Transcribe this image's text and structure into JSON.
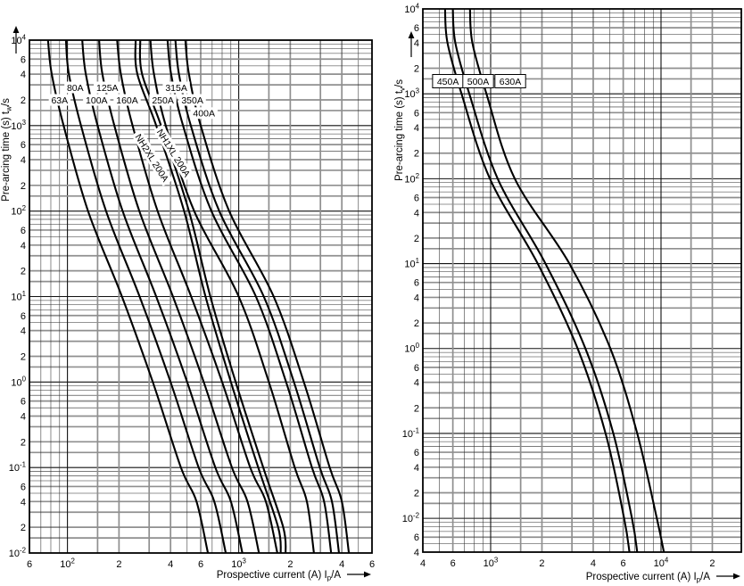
{
  "page": {
    "background": "#ffffff"
  },
  "styles": {
    "curve": "#000000",
    "grid_minor": "#2b2b2b",
    "grid_emph": "#8f8f8f",
    "grid_major": "#111111",
    "frame": "#000000",
    "label_halo": "#ffffff",
    "text": "#000000"
  },
  "chart_data": [
    {
      "name": "left-chart",
      "type": "line",
      "x_axis": {
        "title_pre": "Prospective current (A) I",
        "title_sub": "p",
        "title_post": "/A",
        "scale": "log",
        "range": [
          60,
          6000
        ],
        "ticks": [
          {
            "v": 60,
            "t": "6"
          },
          {
            "v": 100,
            "t": "10^2"
          },
          {
            "v": 200,
            "t": "2"
          },
          {
            "v": 400,
            "t": "4"
          },
          {
            "v": 600,
            "t": "6"
          },
          {
            "v": 1000,
            "t": "10^3"
          },
          {
            "v": 2000,
            "t": "2"
          },
          {
            "v": 4000,
            "t": "4"
          },
          {
            "v": 6000,
            "t": "6"
          }
        ]
      },
      "y_axis": {
        "title_pre": "Pre-arcing time (s) t",
        "title_sub": "w",
        "title_post": "/s",
        "scale": "log",
        "range": [
          0.01,
          10000
        ],
        "ticks": [
          {
            "v": 10000,
            "t": "10^4"
          },
          {
            "v": 6000,
            "t": "6"
          },
          {
            "v": 4000,
            "t": "4"
          },
          {
            "v": 2000,
            "t": "2"
          },
          {
            "v": 1000,
            "t": "10^3"
          },
          {
            "v": 600,
            "t": "6"
          },
          {
            "v": 400,
            "t": "4"
          },
          {
            "v": 200,
            "t": "2"
          },
          {
            "v": 100,
            "t": "10^2"
          },
          {
            "v": 60,
            "t": "6"
          },
          {
            "v": 40,
            "t": "4"
          },
          {
            "v": 20,
            "t": "2"
          },
          {
            "v": 10,
            "t": "10^1"
          },
          {
            "v": 6,
            "t": "6"
          },
          {
            "v": 4,
            "t": "4"
          },
          {
            "v": 2,
            "t": "2"
          },
          {
            "v": 1,
            "t": "10^0"
          },
          {
            "v": 0.6,
            "t": "6"
          },
          {
            "v": 0.4,
            "t": "4"
          },
          {
            "v": 0.2,
            "t": "2"
          },
          {
            "v": 0.1,
            "t": "10^-1"
          },
          {
            "v": 0.06,
            "t": "6"
          },
          {
            "v": 0.04,
            "t": "4"
          },
          {
            "v": 0.02,
            "t": "2"
          },
          {
            "v": 0.01,
            "t": "10^-2"
          }
        ]
      },
      "series": [
        {
          "label": "63A",
          "boxed": false,
          "label_rotation": 0,
          "label_at": [
            90,
            2000
          ],
          "points": [
            [
              77,
              10000
            ],
            [
              81,
              4000
            ],
            [
              95,
              1000
            ],
            [
              132,
              100
            ],
            [
              208,
              10
            ],
            [
              315,
              1
            ],
            [
              460,
              0.1
            ],
            [
              567,
              0.04
            ],
            [
              661,
              0.01
            ]
          ]
        },
        {
          "label": "80A",
          "boxed": false,
          "label_rotation": 0,
          "label_at": [
            111,
            2800
          ],
          "points": [
            [
              98,
              10000
            ],
            [
              102,
              4000
            ],
            [
              120,
              1000
            ],
            [
              168,
              100
            ],
            [
              264,
              10
            ],
            [
              400,
              1
            ],
            [
              584,
              0.1
            ],
            [
              720,
              0.04
            ],
            [
              840,
              0.01
            ]
          ]
        },
        {
          "label": "100A",
          "boxed": false,
          "label_rotation": 0,
          "label_at": [
            148,
            2000
          ],
          "points": [
            [
              122,
              10000
            ],
            [
              128,
              4000
            ],
            [
              150,
              1000
            ],
            [
              210,
              100
            ],
            [
              330,
              10
            ],
            [
              500,
              1
            ],
            [
              730,
              0.1
            ],
            [
              900,
              0.04
            ],
            [
              1050,
              0.01
            ]
          ]
        },
        {
          "label": "125A",
          "boxed": false,
          "label_rotation": 0,
          "label_at": [
            171,
            2800
          ],
          "points": [
            [
              153,
              10000
            ],
            [
              160,
              4000
            ],
            [
              188,
              1000
            ],
            [
              263,
              100
            ],
            [
              413,
              10
            ],
            [
              625,
              1
            ],
            [
              913,
              0.1
            ],
            [
              1125,
              0.04
            ],
            [
              1313,
              0.01
            ]
          ]
        },
        {
          "label": "160A",
          "boxed": false,
          "label_rotation": 0,
          "label_at": [
            223,
            2000
          ],
          "points": [
            [
              195,
              10000
            ],
            [
              205,
              4000
            ],
            [
              240,
              1000
            ],
            [
              336,
              100
            ],
            [
              528,
              10
            ],
            [
              800,
              1
            ],
            [
              1168,
              0.1
            ],
            [
              1440,
              0.04
            ],
            [
              1680,
              0.01
            ]
          ]
        },
        {
          "label": "NH2XL 200A",
          "boxed": false,
          "label_rotation": 58,
          "label_at": [
            312,
            420
          ],
          "points": [
            [
              250,
              10000
            ],
            [
              256,
              4000
            ],
            [
              330,
              1000
            ],
            [
              480,
              100
            ],
            [
              640,
              10
            ],
            [
              900,
              1
            ],
            [
              1300,
              0.1
            ],
            [
              1700,
              0.02
            ],
            [
              1760,
              0.01
            ]
          ]
        },
        {
          "label": "NH1XL 200A",
          "boxed": false,
          "label_rotation": 58,
          "label_at": [
            417,
            480
          ],
          "points": [
            [
              266,
              10000
            ],
            [
              273,
              4000
            ],
            [
              352,
              1000
            ],
            [
              512,
              100
            ],
            [
              683,
              10
            ],
            [
              960,
              1
            ],
            [
              1390,
              0.1
            ],
            [
              1820,
              0.02
            ],
            [
              1880,
              0.01
            ]
          ]
        },
        {
          "label": "250A",
          "boxed": false,
          "label_rotation": 0,
          "label_at": [
            361,
            2000
          ],
          "points": [
            [
              305,
              10000
            ],
            [
              320,
              4000
            ],
            [
              375,
              1000
            ],
            [
              550,
              100
            ],
            [
              1000,
              10
            ],
            [
              1500,
              1
            ],
            [
              2125,
              0.1
            ],
            [
              2500,
              0.04
            ],
            [
              2750,
              0.01
            ]
          ]
        },
        {
          "label": "315A",
          "boxed": false,
          "label_rotation": 0,
          "label_at": [
            432,
            2800
          ],
          "points": [
            [
              384,
              10000
            ],
            [
              403,
              4000
            ],
            [
              473,
              1000
            ],
            [
              693,
              100
            ],
            [
              1260,
              10
            ],
            [
              1890,
              1
            ],
            [
              2678,
              0.1
            ],
            [
              3150,
              0.04
            ],
            [
              3465,
              0.01
            ]
          ]
        },
        {
          "label": "350A",
          "boxed": false,
          "label_rotation": 0,
          "label_at": [
            536,
            2000
          ],
          "points": [
            [
              427,
              10000
            ],
            [
              448,
              4000
            ],
            [
              525,
              1000
            ],
            [
              770,
              100
            ],
            [
              1400,
              10
            ],
            [
              2100,
              1
            ],
            [
              2975,
              0.1
            ],
            [
              3500,
              0.04
            ],
            [
              3850,
              0.01
            ]
          ]
        },
        {
          "label": "400A",
          "boxed": false,
          "label_rotation": 0,
          "label_at": [
            627,
            1400
          ],
          "points": [
            [
              488,
              10000
            ],
            [
              512,
              4000
            ],
            [
              600,
              1000
            ],
            [
              880,
              100
            ],
            [
              1600,
              10
            ],
            [
              2400,
              1
            ],
            [
              3400,
              0.1
            ],
            [
              4000,
              0.04
            ],
            [
              4400,
              0.01
            ]
          ]
        }
      ]
    },
    {
      "name": "right-chart",
      "type": "line",
      "x_axis": {
        "title_pre": "Prospective current (A) I",
        "title_sub": "p",
        "title_post": "/A",
        "scale": "log",
        "range": [
          400,
          29600
        ],
        "ticks": [
          {
            "v": 400,
            "t": "4"
          },
          {
            "v": 600,
            "t": "6"
          },
          {
            "v": 1000,
            "t": "10^3"
          },
          {
            "v": 2000,
            "t": "2"
          },
          {
            "v": 4000,
            "t": "4"
          },
          {
            "v": 6000,
            "t": "6"
          },
          {
            "v": 10000,
            "t": "10^4"
          },
          {
            "v": 20000,
            "t": "2"
          }
        ]
      },
      "y_axis": {
        "title_pre": "Pre-arcing time (s) t",
        "title_sub": "v",
        "title_post": "/s",
        "scale": "log",
        "range": [
          0.004,
          10000
        ],
        "ticks": [
          {
            "v": 10000,
            "t": "10^4"
          },
          {
            "v": 6000,
            "t": "6"
          },
          {
            "v": 4000,
            "t": "4"
          },
          {
            "v": 2000,
            "t": "2"
          },
          {
            "v": 1000,
            "t": "10^3"
          },
          {
            "v": 600,
            "t": "6"
          },
          {
            "v": 400,
            "t": "4"
          },
          {
            "v": 200,
            "t": "2"
          },
          {
            "v": 100,
            "t": "10^2"
          },
          {
            "v": 60,
            "t": "6"
          },
          {
            "v": 40,
            "t": "4"
          },
          {
            "v": 20,
            "t": "2"
          },
          {
            "v": 10,
            "t": "10^1"
          },
          {
            "v": 6,
            "t": "6"
          },
          {
            "v": 4,
            "t": "4"
          },
          {
            "v": 2,
            "t": "2"
          },
          {
            "v": 1,
            "t": "10^0"
          },
          {
            "v": 0.6,
            "t": "6"
          },
          {
            "v": 0.4,
            "t": "4"
          },
          {
            "v": 0.2,
            "t": "2"
          },
          {
            "v": 0.1,
            "t": "10^-1"
          },
          {
            "v": 0.06,
            "t": "6"
          },
          {
            "v": 0.04,
            "t": "4"
          },
          {
            "v": 0.02,
            "t": "2"
          },
          {
            "v": 0.01,
            "t": "10^-2"
          },
          {
            "v": 0.006,
            "t": "6"
          },
          {
            "v": 0.004,
            "t": "4"
          }
        ]
      },
      "series": [
        {
          "label": "450A",
          "boxed": true,
          "label_rotation": 0,
          "label_at": [
            561,
            1410
          ],
          "points": [
            [
              540,
              10000
            ],
            [
              558,
              4000
            ],
            [
              675,
              1000
            ],
            [
              990,
              100
            ],
            [
              1890,
              10
            ],
            [
              3240,
              1
            ],
            [
              4725,
              0.1
            ],
            [
              6075,
              0.01
            ],
            [
              6525,
              0.004
            ]
          ]
        },
        {
          "label": "500A",
          "boxed": true,
          "label_rotation": 0,
          "label_at": [
            845,
            1410
          ],
          "points": [
            [
              600,
              10000
            ],
            [
              620,
              4000
            ],
            [
              750,
              1000
            ],
            [
              1100,
              100
            ],
            [
              2100,
              10
            ],
            [
              3600,
              1
            ],
            [
              5250,
              0.1
            ],
            [
              6750,
              0.01
            ],
            [
              7250,
              0.004
            ]
          ]
        },
        {
          "label": "630A",
          "boxed": true,
          "label_rotation": 0,
          "label_at": [
            1304,
            1410
          ],
          "points": [
            [
              756,
              10000
            ],
            [
              781,
              4000
            ],
            [
              945,
              1000
            ],
            [
              1386,
              100
            ],
            [
              2900,
              10
            ],
            [
              5040,
              1
            ],
            [
              7245,
              0.1
            ],
            [
              9450,
              0.01
            ],
            [
              10395,
              0.004
            ]
          ]
        }
      ]
    }
  ]
}
